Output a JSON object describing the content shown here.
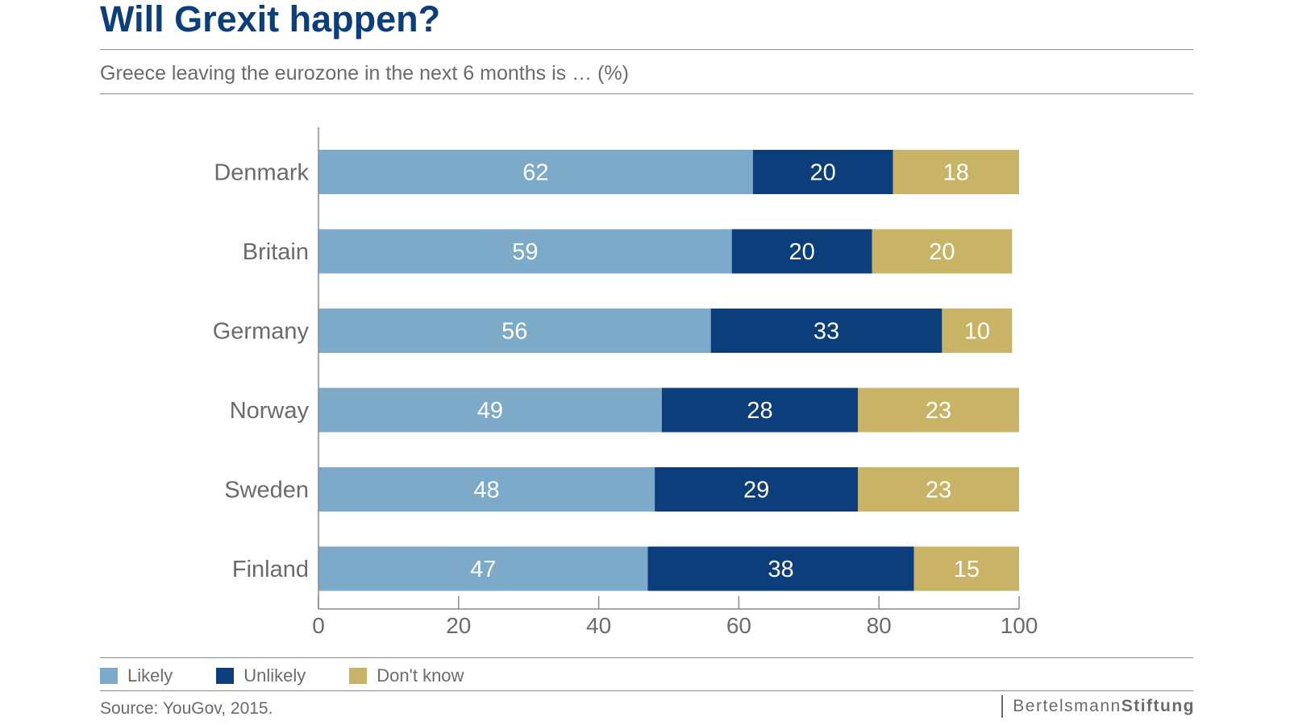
{
  "title": "Will Grexit happen?",
  "subtitle": "Greece leaving the eurozone in the next 6 months is … (%)",
  "source": "Source: YouGov, 2015.",
  "brand": {
    "part1": "Bertelsmann",
    "part2": "Stiftung"
  },
  "colors": {
    "title": "#0b3e7a",
    "text": "#6b6b6b",
    "axis": "#8a8a8a",
    "likely": "#7eaac9",
    "unlikely": "#0b3e7a",
    "dontknow": "#c8b366",
    "bar_label": "#ffffff"
  },
  "legend": [
    {
      "label": "Likely",
      "color": "#7eaac9"
    },
    {
      "label": "Unlikely",
      "color": "#0b3e7a"
    },
    {
      "label": "Don't know",
      "color": "#c8b366"
    }
  ],
  "chart_data": {
    "type": "bar",
    "orientation": "horizontal",
    "stacked": true,
    "categories": [
      "Denmark",
      "Britain",
      "Germany",
      "Norway",
      "Sweden",
      "Finland"
    ],
    "series": [
      {
        "name": "Likely",
        "values": [
          62,
          59,
          56,
          49,
          48,
          47
        ]
      },
      {
        "name": "Unlikely",
        "values": [
          20,
          20,
          33,
          28,
          29,
          38
        ]
      },
      {
        "name": "Don't know",
        "values": [
          18,
          20,
          10,
          23,
          23,
          15
        ]
      }
    ],
    "title": "Will Grexit happen?",
    "subtitle": "Greece leaving the eurozone in the next 6 months is … (%)",
    "xlim": [
      0,
      100
    ],
    "xticks": [
      0,
      20,
      40,
      60,
      80,
      100
    ],
    "grid": false,
    "legend_position": "bottom-left"
  }
}
